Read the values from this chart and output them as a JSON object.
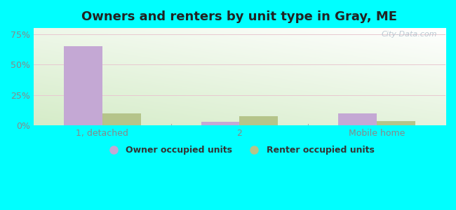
{
  "title": "Owners and renters by unit type in Gray, ME",
  "categories": [
    "1, detached",
    "2",
    "Mobile home"
  ],
  "owner_values": [
    65.0,
    3.0,
    10.0
  ],
  "renter_values": [
    10.0,
    8.0,
    4.0
  ],
  "owner_color": "#c4a8d4",
  "renter_color": "#b5c48a",
  "yticks": [
    0,
    25,
    50,
    75
  ],
  "ytick_labels": [
    "0%",
    "25%",
    "50%",
    "75%"
  ],
  "ylim": [
    0,
    80
  ],
  "bar_width": 0.28,
  "outer_bg": "#00ffff",
  "watermark": "City-Data.com",
  "legend_labels": [
    "Owner occupied units",
    "Renter occupied units"
  ],
  "grid_color": "#e8c8d0",
  "bg_colors": [
    "#d8efd0",
    "#f0faf0",
    "#ffffff"
  ],
  "tick_color": "#888888"
}
